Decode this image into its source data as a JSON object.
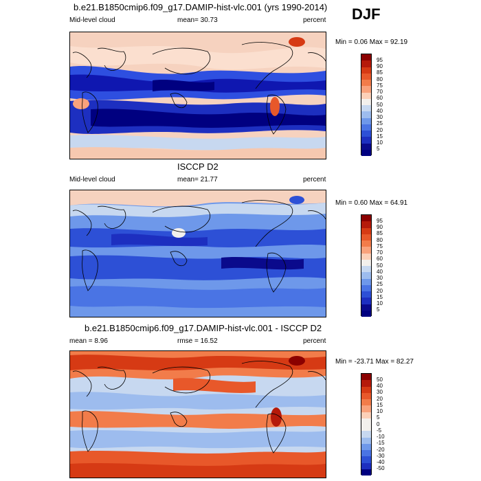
{
  "season": "DJF",
  "panels": [
    {
      "title": "b.e21.B1850cmip6.f09_g17.DAMIP-hist-vlc.001 (yrs 1990-2014)",
      "left_label": "Mid-level cloud",
      "center_label": "mean=  30.73",
      "right_label": "percent",
      "minmax": "Min =   0.06 Max =  92.19",
      "ticks": [
        "95",
        "90",
        "85",
        "80",
        "75",
        "70",
        "60",
        "50",
        "40",
        "30",
        "25",
        "20",
        "15",
        "10",
        "5"
      ]
    },
    {
      "title": "ISCCP D2",
      "left_label": "Mid-level cloud",
      "center_label": "mean=  21.77",
      "right_label": "percent",
      "minmax": "Min =   0.60 Max =  64.91",
      "ticks": [
        "95",
        "90",
        "85",
        "80",
        "75",
        "70",
        "60",
        "50",
        "40",
        "30",
        "25",
        "20",
        "15",
        "10",
        "5"
      ]
    },
    {
      "title": "b.e21.B1850cmip6.f09_g17.DAMIP-hist-vlc.001 - ISCCP D2",
      "left_label": "mean =   8.96",
      "center_label": "rmse =  16.52",
      "right_label": "percent",
      "minmax": "Min = -23.71 Max =  82.27",
      "ticks": [
        "50",
        "40",
        "30",
        "20",
        "15",
        "10",
        "5",
        "0",
        "-5",
        "-10",
        "-15",
        "-20",
        "-30",
        "-40",
        "-50"
      ]
    }
  ],
  "colors": {
    "abs_scale": [
      "#8b0000",
      "#b51a0a",
      "#d63a14",
      "#e8582a",
      "#f27c4a",
      "#f9a27c",
      "#fcd0b8",
      "#f3f0ec",
      "#c7d8f0",
      "#9dbcee",
      "#6e98ea",
      "#4a74e4",
      "#2d50d6",
      "#1d2fc0",
      "#0a0a8c",
      "#000080"
    ],
    "diff_scale": [
      "#8b0000",
      "#b51a0a",
      "#d63a14",
      "#e8582a",
      "#f27c4a",
      "#f9a27c",
      "#fcd0b8",
      "#f3f0ec",
      "#f3f0ec",
      "#c7d8f0",
      "#9dbcee",
      "#6e98ea",
      "#4a74e4",
      "#2d50d6",
      "#1d2fc0",
      "#000080"
    ]
  }
}
